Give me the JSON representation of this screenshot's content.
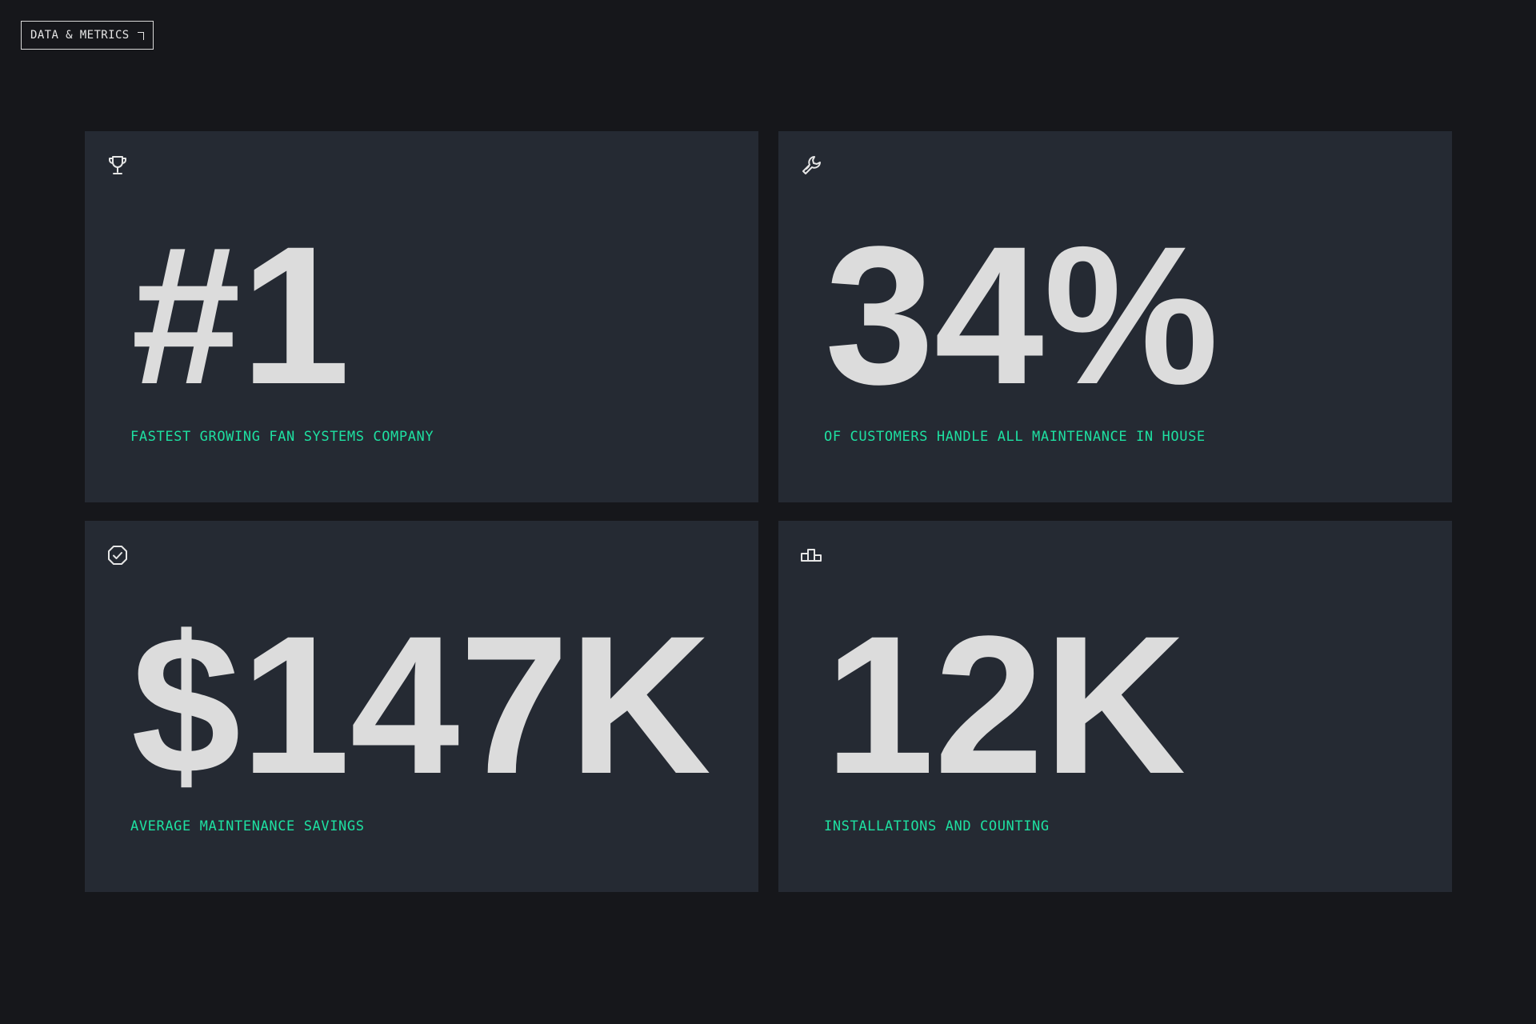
{
  "section_tag": {
    "label": "DATA & METRICS"
  },
  "metrics": [
    {
      "icon": "trophy-icon",
      "value": "#1",
      "label": "FASTEST GROWING FAN SYSTEMS COMPANY"
    },
    {
      "icon": "wrench-icon",
      "value": "34%",
      "label": "OF CUSTOMERS HANDLE ALL MAINTENANCE IN HOUSE"
    },
    {
      "icon": "badge-check-icon",
      "value": "$147K",
      "label": "AVERAGE MAINTENANCE SAVINGS"
    },
    {
      "icon": "podium-icon",
      "value": "12K",
      "label": "INSTALLATIONS AND COUNTING"
    }
  ],
  "colors": {
    "page_background": "#16171b",
    "card_background": "#252a33",
    "value_text": "#dcdcdc",
    "accent_label": "#1ee0a1",
    "tag_border": "#d9d9d9"
  }
}
